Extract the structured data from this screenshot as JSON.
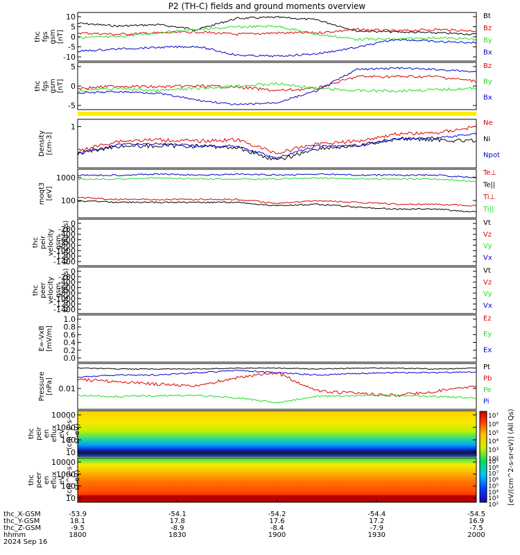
{
  "title": "P2 (TH-C) fields and ground moments overview",
  "colors": {
    "black": "#000000",
    "red": "#dd0000",
    "green": "#22dd22",
    "blue": "#0000cc",
    "yellow": "#ffee00"
  },
  "panels": [
    {
      "id": "fgs",
      "ylabel": [
        "thc",
        "fgs",
        "gsm",
        "[nT]"
      ],
      "yticks": [
        "10",
        "5",
        "0",
        "-5",
        "-10"
      ],
      "legend": [
        {
          "text": "Bt",
          "color": "black"
        },
        {
          "text": "Bz",
          "color": "red"
        },
        {
          "text": "By",
          "color": "green"
        },
        {
          "text": "Bx",
          "color": "blue"
        }
      ]
    },
    {
      "id": "fgs_gse",
      "ylabel": [
        "thc",
        "fgs",
        "gsm",
        "[nT]"
      ],
      "yticks": [
        "5",
        "0",
        "-5"
      ],
      "legend": [
        {
          "text": "Bz",
          "color": "red"
        },
        {
          "text": "By",
          "color": "green"
        },
        {
          "text": "Bx",
          "color": "blue"
        }
      ]
    },
    {
      "id": "density",
      "ylabel": [
        "Density",
        "[cm-3]"
      ],
      "yticks": [
        "1"
      ],
      "legend": [
        {
          "text": "Ne",
          "color": "red"
        },
        {
          "text": "Ni",
          "color": "black"
        },
        {
          "text": "Npot",
          "color": "blue"
        }
      ]
    },
    {
      "id": "temp",
      "ylabel": [
        "moqt3",
        "[eV]"
      ],
      "yticks": [
        "1000",
        "100"
      ],
      "legend": [
        {
          "text": "Te⊥",
          "color": "red"
        },
        {
          "text": "Te||",
          "color": "black"
        },
        {
          "text": "Ti⊥",
          "color": "red"
        },
        {
          "text": "Ti||",
          "color": "green"
        }
      ]
    },
    {
      "id": "vi",
      "ylabel": [
        "thc",
        "peir",
        "velocity",
        "gsm",
        "km/s (All Qs)"
      ],
      "yticks": [
        "0",
        "-200",
        "-400",
        "-600",
        "-800",
        "-1000",
        "-1200",
        "-1400"
      ],
      "legend": [
        {
          "text": "Vt",
          "color": "black"
        },
        {
          "text": "Vz",
          "color": "red"
        },
        {
          "text": "Vy",
          "color": "green"
        },
        {
          "text": "Vx",
          "color": "blue"
        }
      ]
    },
    {
      "id": "ve",
      "ylabel": [
        "thc",
        "peer",
        "velocity",
        "gsm",
        "km/s (All Qs)"
      ],
      "yticks": [
        "0",
        "-200",
        "-400",
        "-600",
        "-800",
        "-1000",
        "-1200",
        "-1400"
      ],
      "legend": [
        {
          "text": "Vt",
          "color": "black"
        },
        {
          "text": "Vz",
          "color": "red"
        },
        {
          "text": "Vy",
          "color": "green"
        },
        {
          "text": "Vx",
          "color": "blue"
        }
      ]
    },
    {
      "id": "efield",
      "ylabel": [
        "E=-VxB",
        "[mV/m]"
      ],
      "yticks": [
        "1.0",
        "0.8",
        "0.6",
        "0.4",
        "0.2",
        "0.0"
      ],
      "legend": [
        {
          "text": "Ez",
          "color": "red"
        },
        {
          "text": "Ey",
          "color": "green"
        },
        {
          "text": "Ex",
          "color": "blue"
        }
      ]
    },
    {
      "id": "pressure",
      "ylabel": [
        "Pressure",
        "[nPa]"
      ],
      "yticks": [
        "0.01"
      ],
      "legend": [
        {
          "text": "Pt",
          "color": "black"
        },
        {
          "text": "Pb",
          "color": "red"
        },
        {
          "text": "Pe",
          "color": "green"
        },
        {
          "text": "Pi",
          "color": "blue"
        }
      ]
    },
    {
      "id": "ion_spec",
      "ylabel": [
        "thc",
        "peir",
        "en",
        "eflux",
        "eV",
        "(cm^2-s-",
        "sr-eV)"
      ],
      "yticks": [
        "10000",
        "1000",
        "100",
        "10"
      ],
      "colorbar_label": "[eV/(cm^2-s-sr-eV)] (All Qs)",
      "cbar_ticks": [
        "10^7",
        "10^6",
        "10^5",
        "10^4",
        "10^3",
        "10^2"
      ]
    },
    {
      "id": "ele_spec",
      "ylabel": [
        "thc",
        "peer",
        "en",
        "eflux",
        "eV",
        "(cm^2-s-",
        "sr-eV)"
      ],
      "yticks": [
        "10000",
        "1000",
        "100",
        "10"
      ],
      "colorbar_label": "[eV/(cm^2-s-sr-eV)] (All Qs)",
      "cbar_ticks": [
        "10^9",
        "10^8",
        "10^7",
        "10^6",
        "10^5",
        "10^4",
        "10^3",
        "10^2"
      ]
    }
  ],
  "xaxis": {
    "row_labels": [
      "thc_X-GSM",
      "thc_Y-GSM",
      "thc_Z-GSM",
      "hhmm",
      "2024 Sep 16"
    ],
    "ticks": [
      {
        "x_gsm": "-53.9",
        "y_gsm": "18.1",
        "z_gsm": "-9.5",
        "hhmm": "1800"
      },
      {
        "x_gsm": "-54.1",
        "y_gsm": "17.8",
        "z_gsm": "-8.9",
        "hhmm": "1830"
      },
      {
        "x_gsm": "-54.2",
        "y_gsm": "17.6",
        "z_gsm": "-8.4",
        "hhmm": "1900"
      },
      {
        "x_gsm": "-54.4",
        "y_gsm": "17.2",
        "z_gsm": "-7.9",
        "hhmm": "1930"
      },
      {
        "x_gsm": "-54.5",
        "y_gsm": "16.9",
        "z_gsm": "-7.5",
        "hhmm": "2000"
      }
    ]
  },
  "chart_data": {
    "type": "line",
    "title": "P2 (TH-C) fields and ground moments overview",
    "x_time": [
      "1800",
      "1830",
      "1900",
      "1930",
      "2000"
    ],
    "series": [
      {
        "name": "Bt",
        "panel": "fgs",
        "x": [
          "1800",
          "1815",
          "1830",
          "1845",
          "1855",
          "1900",
          "1910",
          "1920",
          "1930",
          "1945",
          "2000"
        ],
        "values": [
          7,
          6,
          7,
          5,
          9,
          10,
          9,
          5,
          3,
          3,
          2
        ]
      },
      {
        "name": "Bz",
        "panel": "fgs",
        "x": [
          "1800",
          "1830",
          "1900",
          "1930",
          "2000"
        ],
        "values": [
          2,
          2,
          2,
          3,
          3
        ]
      },
      {
        "name": "By",
        "panel": "fgs",
        "x": [
          "1800",
          "1830",
          "1900",
          "1930",
          "2000"
        ],
        "values": [
          1,
          3,
          5,
          1,
          0
        ]
      },
      {
        "name": "Bx",
        "panel": "fgs",
        "x": [
          "1800",
          "1830",
          "1900",
          "1930",
          "2000"
        ],
        "values": [
          -6,
          -4,
          -9,
          -3,
          -4
        ]
      },
      {
        "name": "Ne",
        "panel": "density",
        "x": [
          "1800",
          "1830",
          "1900",
          "1930",
          "2000"
        ],
        "values": [
          0.15,
          0.2,
          0.15,
          0.4,
          0.5
        ]
      },
      {
        "name": "Ni",
        "panel": "density",
        "x": [
          "1800",
          "1830",
          "1900",
          "1930",
          "2000"
        ],
        "values": [
          0.1,
          0.12,
          0.1,
          0.25,
          0.2
        ]
      },
      {
        "name": "Te⊥",
        "panel": "temp",
        "x": [
          "1800",
          "1830",
          "1900",
          "1930",
          "2000"
        ],
        "values": [
          1000,
          900,
          950,
          900,
          700
        ]
      },
      {
        "name": "Ti||",
        "panel": "temp",
        "x": [
          "1800",
          "1830",
          "1900",
          "1930",
          "2000"
        ],
        "values": [
          800,
          750,
          800,
          700,
          500
        ]
      },
      {
        "name": "Pt",
        "panel": "pressure",
        "x": [
          "1800",
          "1830",
          "1900",
          "1930",
          "2000"
        ],
        "values": [
          0.05,
          0.045,
          0.05,
          0.045,
          0.04
        ]
      }
    ]
  }
}
